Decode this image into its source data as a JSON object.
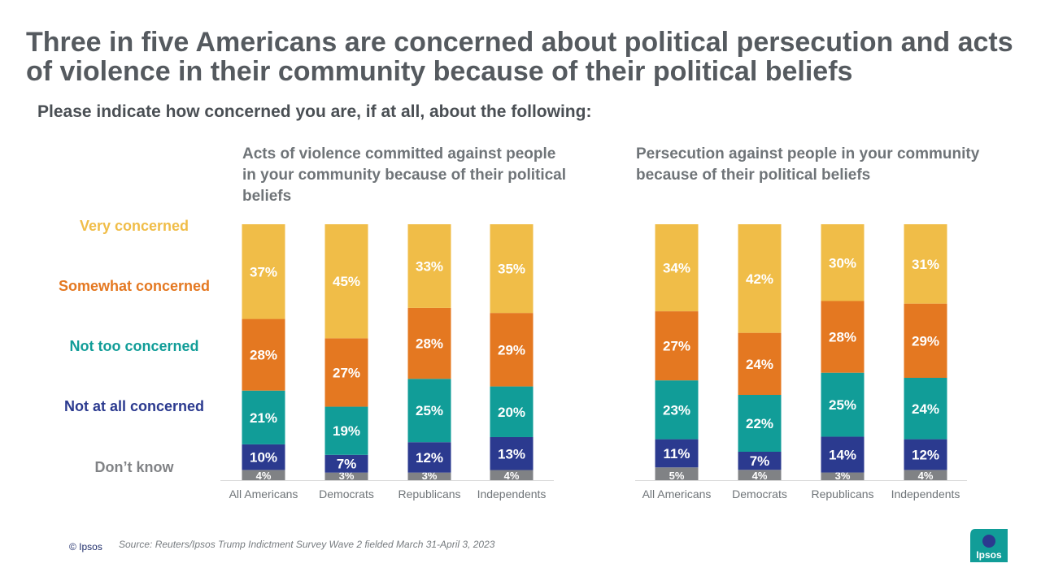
{
  "title": "Three in five Americans are concerned about political persecution and acts of violence in their community because of their political beliefs",
  "subtitle": "Please indicate how concerned you are, if at all, about the following:",
  "legend": [
    {
      "key": "very",
      "label": "Very concerned",
      "color": "#f0bd48"
    },
    {
      "key": "somewhat",
      "label": "Somewhat concerned",
      "color": "#e47821"
    },
    {
      "key": "not_too",
      "label": "Not too concerned",
      "color": "#119d98"
    },
    {
      "key": "not_at_all",
      "label": "Not at all concerned",
      "color": "#2b3a8f"
    },
    {
      "key": "dont_know",
      "label": "Don’t know",
      "color": "#808285"
    }
  ],
  "chart_data": [
    {
      "type": "bar",
      "stacked": true,
      "title": "Acts of violence committed against people in your community because of their political beliefs",
      "categories": [
        "All Americans",
        "Democrats",
        "Republicans",
        "Independents"
      ],
      "series": [
        {
          "name": "Don’t know",
          "values": [
            4,
            3,
            3,
            4
          ]
        },
        {
          "name": "Not at all concerned",
          "values": [
            10,
            7,
            12,
            13
          ]
        },
        {
          "name": "Not too concerned",
          "values": [
            21,
            19,
            25,
            20
          ]
        },
        {
          "name": "Somewhat concerned",
          "values": [
            28,
            27,
            28,
            29
          ]
        },
        {
          "name": "Very concerned",
          "values": [
            37,
            45,
            33,
            35
          ]
        }
      ],
      "unit": "%"
    },
    {
      "type": "bar",
      "stacked": true,
      "title": "Persecution against people in your community because of their political beliefs",
      "categories": [
        "All Americans",
        "Democrats",
        "Republicans",
        "Independents"
      ],
      "series": [
        {
          "name": "Don’t know",
          "values": [
            5,
            4,
            3,
            4
          ]
        },
        {
          "name": "Not at all concerned",
          "values": [
            11,
            7,
            14,
            12
          ]
        },
        {
          "name": "Not too concerned",
          "values": [
            23,
            22,
            25,
            24
          ]
        },
        {
          "name": "Somewhat concerned",
          "values": [
            27,
            24,
            28,
            29
          ]
        },
        {
          "name": "Very concerned",
          "values": [
            34,
            42,
            30,
            31
          ]
        }
      ],
      "unit": "%"
    }
  ],
  "footer": {
    "copyright": "© Ipsos",
    "source": "Source: Reuters/Ipsos Trump Indictment Survey Wave 2 fielded March 31-April 3, 2023"
  },
  "logo": {
    "text": "Ipsos",
    "color": "#119d98",
    "accent": "#2b3a8f"
  }
}
